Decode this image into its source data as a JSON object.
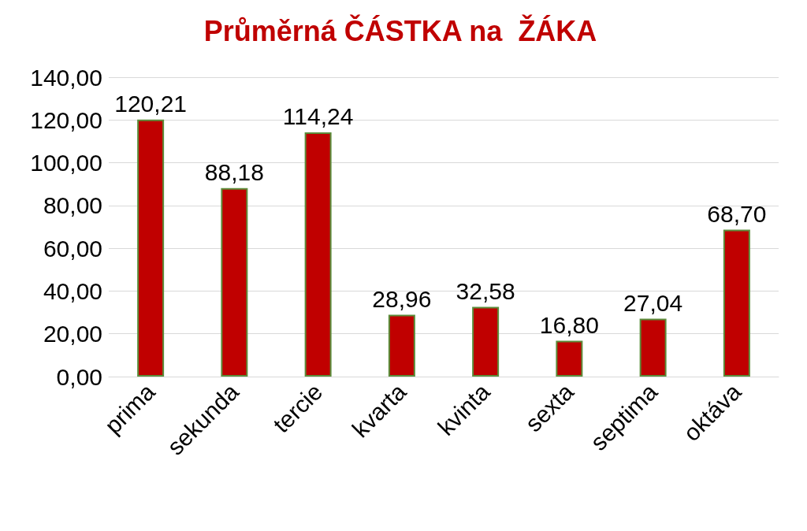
{
  "chart_data": {
    "type": "bar",
    "title": "Průměrná ČÁSTKA na  ŽÁKA",
    "categories": [
      "prima",
      "sekunda",
      "tercie",
      "kvarta",
      "kvinta",
      "sexta",
      "septima",
      "oktáva"
    ],
    "values": [
      120.21,
      88.18,
      114.24,
      28.96,
      32.58,
      16.8,
      27.04,
      68.7
    ],
    "value_labels": [
      "120,21",
      "88,18",
      "114,24",
      "28,96",
      "32,58",
      "16,80",
      "27,04",
      "68,70"
    ],
    "color": "#c00000",
    "ylim": [
      0,
      140
    ],
    "yticks": [
      {
        "value": 0,
        "label": "0,00"
      },
      {
        "value": 20,
        "label": "20,00"
      },
      {
        "value": 40,
        "label": "40,00"
      },
      {
        "value": 60,
        "label": "60,00"
      },
      {
        "value": 80,
        "label": "80,00"
      },
      {
        "value": 100,
        "label": "100,00"
      },
      {
        "value": 120,
        "label": "120,00"
      },
      {
        "value": 140,
        "label": "140,00"
      }
    ],
    "grid": "y"
  }
}
